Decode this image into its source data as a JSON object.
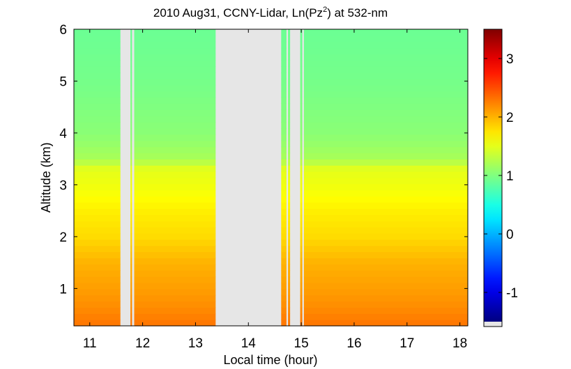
{
  "chart_data": {
    "type": "heatmap",
    "title_prefix": "2010 Aug31, CCNY-Lidar, Ln(Pz",
    "title_sup": "2",
    "title_suffix": ") at 532-nm",
    "xlabel": "Local time (hour)",
    "ylabel": "Altitude (km)",
    "xlim": [
      10.7,
      18.15
    ],
    "ylim": [
      0.28,
      6.0
    ],
    "xticks": [
      11,
      12,
      13,
      14,
      15,
      16,
      17,
      18
    ],
    "yticks": [
      1,
      2,
      3,
      4,
      5,
      6
    ],
    "colorbar": {
      "clim": [
        -1.5,
        3.5
      ],
      "ticks": [
        -1,
        0,
        1,
        2,
        3
      ],
      "colormap": "jet"
    },
    "missing_color": "#e6e6e6",
    "data_segments": [
      {
        "t0": 10.7,
        "t1": 11.58
      },
      {
        "t0": 11.77,
        "t1": 11.8
      },
      {
        "t0": 11.84,
        "t1": 13.38
      },
      {
        "t0": 14.62,
        "t1": 14.72
      },
      {
        "t0": 14.75,
        "t1": 14.79
      },
      {
        "t0": 14.98,
        "t1": 15.02
      },
      {
        "t0": 15.05,
        "t1": 18.15
      }
    ],
    "series": [
      {
        "altitude_km": [
          0.3,
          0.6,
          1.0,
          1.5,
          2.0,
          2.5,
          3.0,
          3.3,
          3.5,
          4.0,
          5.0,
          6.0
        ],
        "value": [
          2.3,
          2.2,
          2.1,
          2.0,
          1.8,
          1.7,
          1.55,
          1.5,
          1.2,
          1.05,
          0.95,
          0.9
        ]
      }
    ]
  }
}
